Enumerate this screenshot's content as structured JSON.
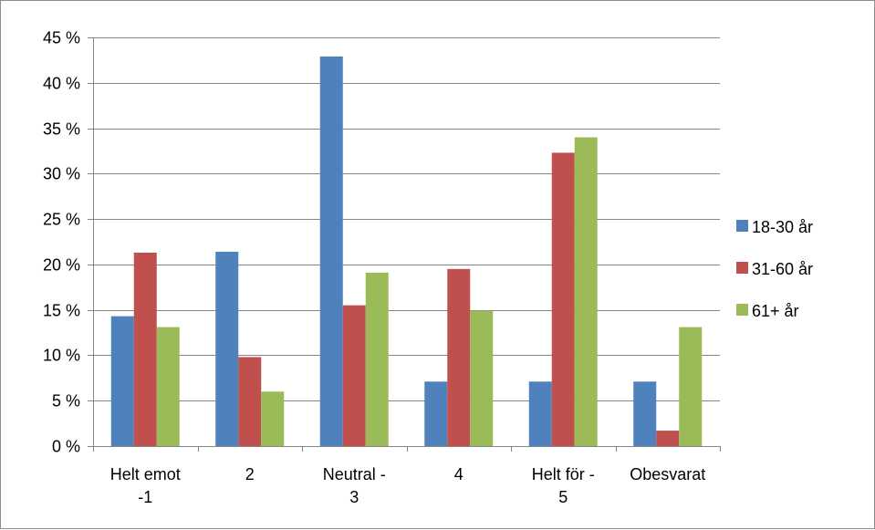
{
  "chart_data": {
    "type": "bar",
    "title": "",
    "xlabel": "",
    "ylabel": "",
    "categories": [
      [
        "Helt emot",
        "-1"
      ],
      [
        "2"
      ],
      [
        "Neutral -",
        "3"
      ],
      [
        "4"
      ],
      [
        "Helt för -",
        "5"
      ],
      [
        "Obesvarat"
      ]
    ],
    "ylim": [
      0,
      45
    ],
    "yticks": [
      0,
      5,
      10,
      15,
      20,
      25,
      30,
      35,
      40,
      45
    ],
    "ytick_labels": [
      "0 %",
      "5 %",
      "10 %",
      "15 %",
      "20 %",
      "25 %",
      "30 %",
      "35 %",
      "40 %",
      "45 %"
    ],
    "grid": true,
    "legend_position": "right",
    "series": [
      {
        "name": "18-30 år",
        "color": "#4f81bd",
        "values": [
          14.3,
          21.4,
          42.9,
          7.1,
          7.1,
          7.1
        ]
      },
      {
        "name": "31-60 år",
        "color": "#c0504d",
        "values": [
          21.3,
          9.8,
          15.5,
          19.5,
          32.3,
          1.7
        ]
      },
      {
        "name": "61+ år",
        "color": "#9bbb59",
        "values": [
          13.1,
          6.0,
          19.1,
          14.9,
          34.0,
          13.1
        ]
      }
    ]
  }
}
